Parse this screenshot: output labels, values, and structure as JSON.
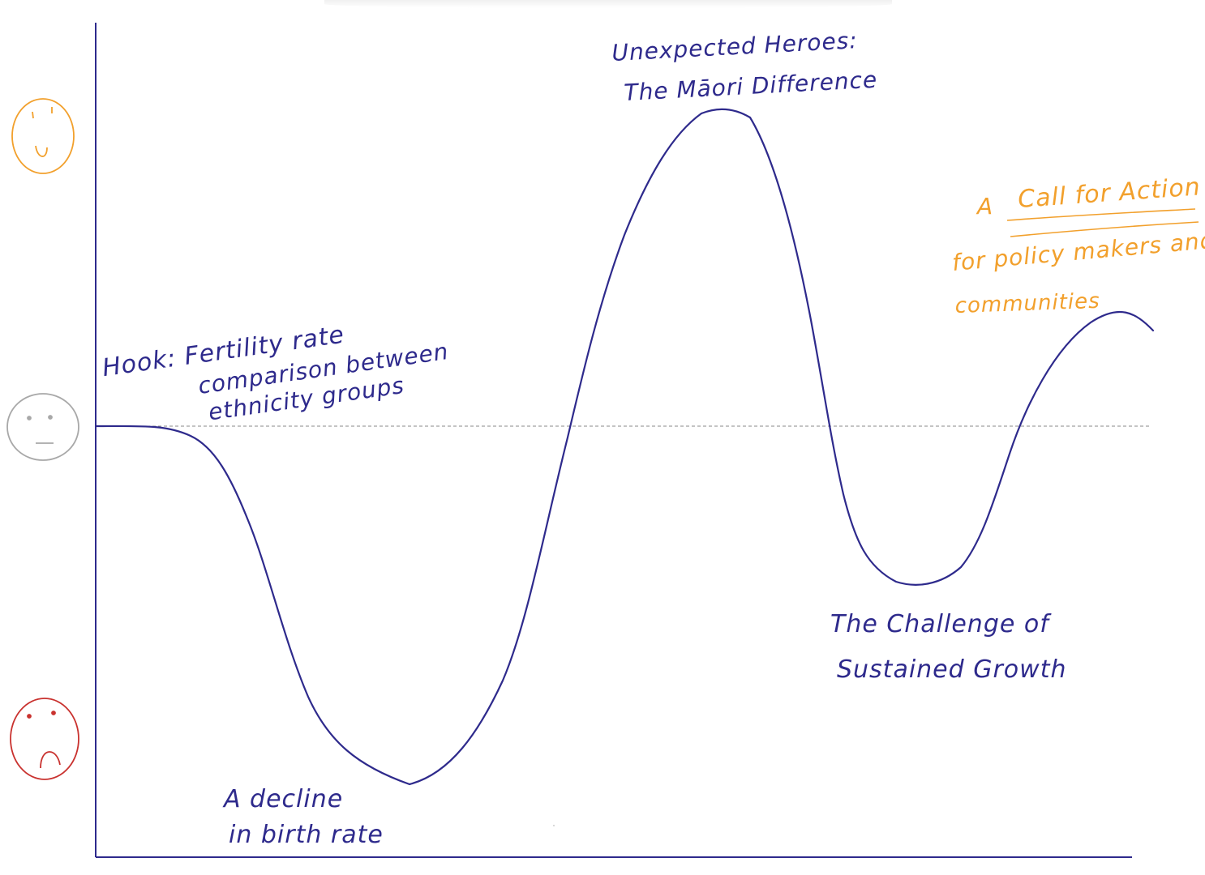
{
  "colors": {
    "ink": "#2e2a8c",
    "accent": "#f2a02c",
    "neutral": "#a8a8a8",
    "sad": "#c9322f",
    "baseline": "#8a8a8a"
  },
  "faces": {
    "happy_icon": "smiley-happy-face",
    "neutral_icon": "neutral-face",
    "sad_icon": "sad-face"
  },
  "labels": {
    "hook_line1": "Hook: Fertility rate",
    "hook_line2": "comparison between",
    "hook_line3": "ethnicity groups",
    "decline_line1": "A decline",
    "decline_line2": "in birth rate",
    "heroes_line1": "Unexpected Heroes:",
    "heroes_line2": "The Māori Difference",
    "challenge_line1": "The Challenge of",
    "challenge_line2": "Sustained Growth",
    "action_prefix": "A",
    "action_title": "Call for Action",
    "action_line2": "for policy makers and",
    "action_line3": "communities"
  }
}
